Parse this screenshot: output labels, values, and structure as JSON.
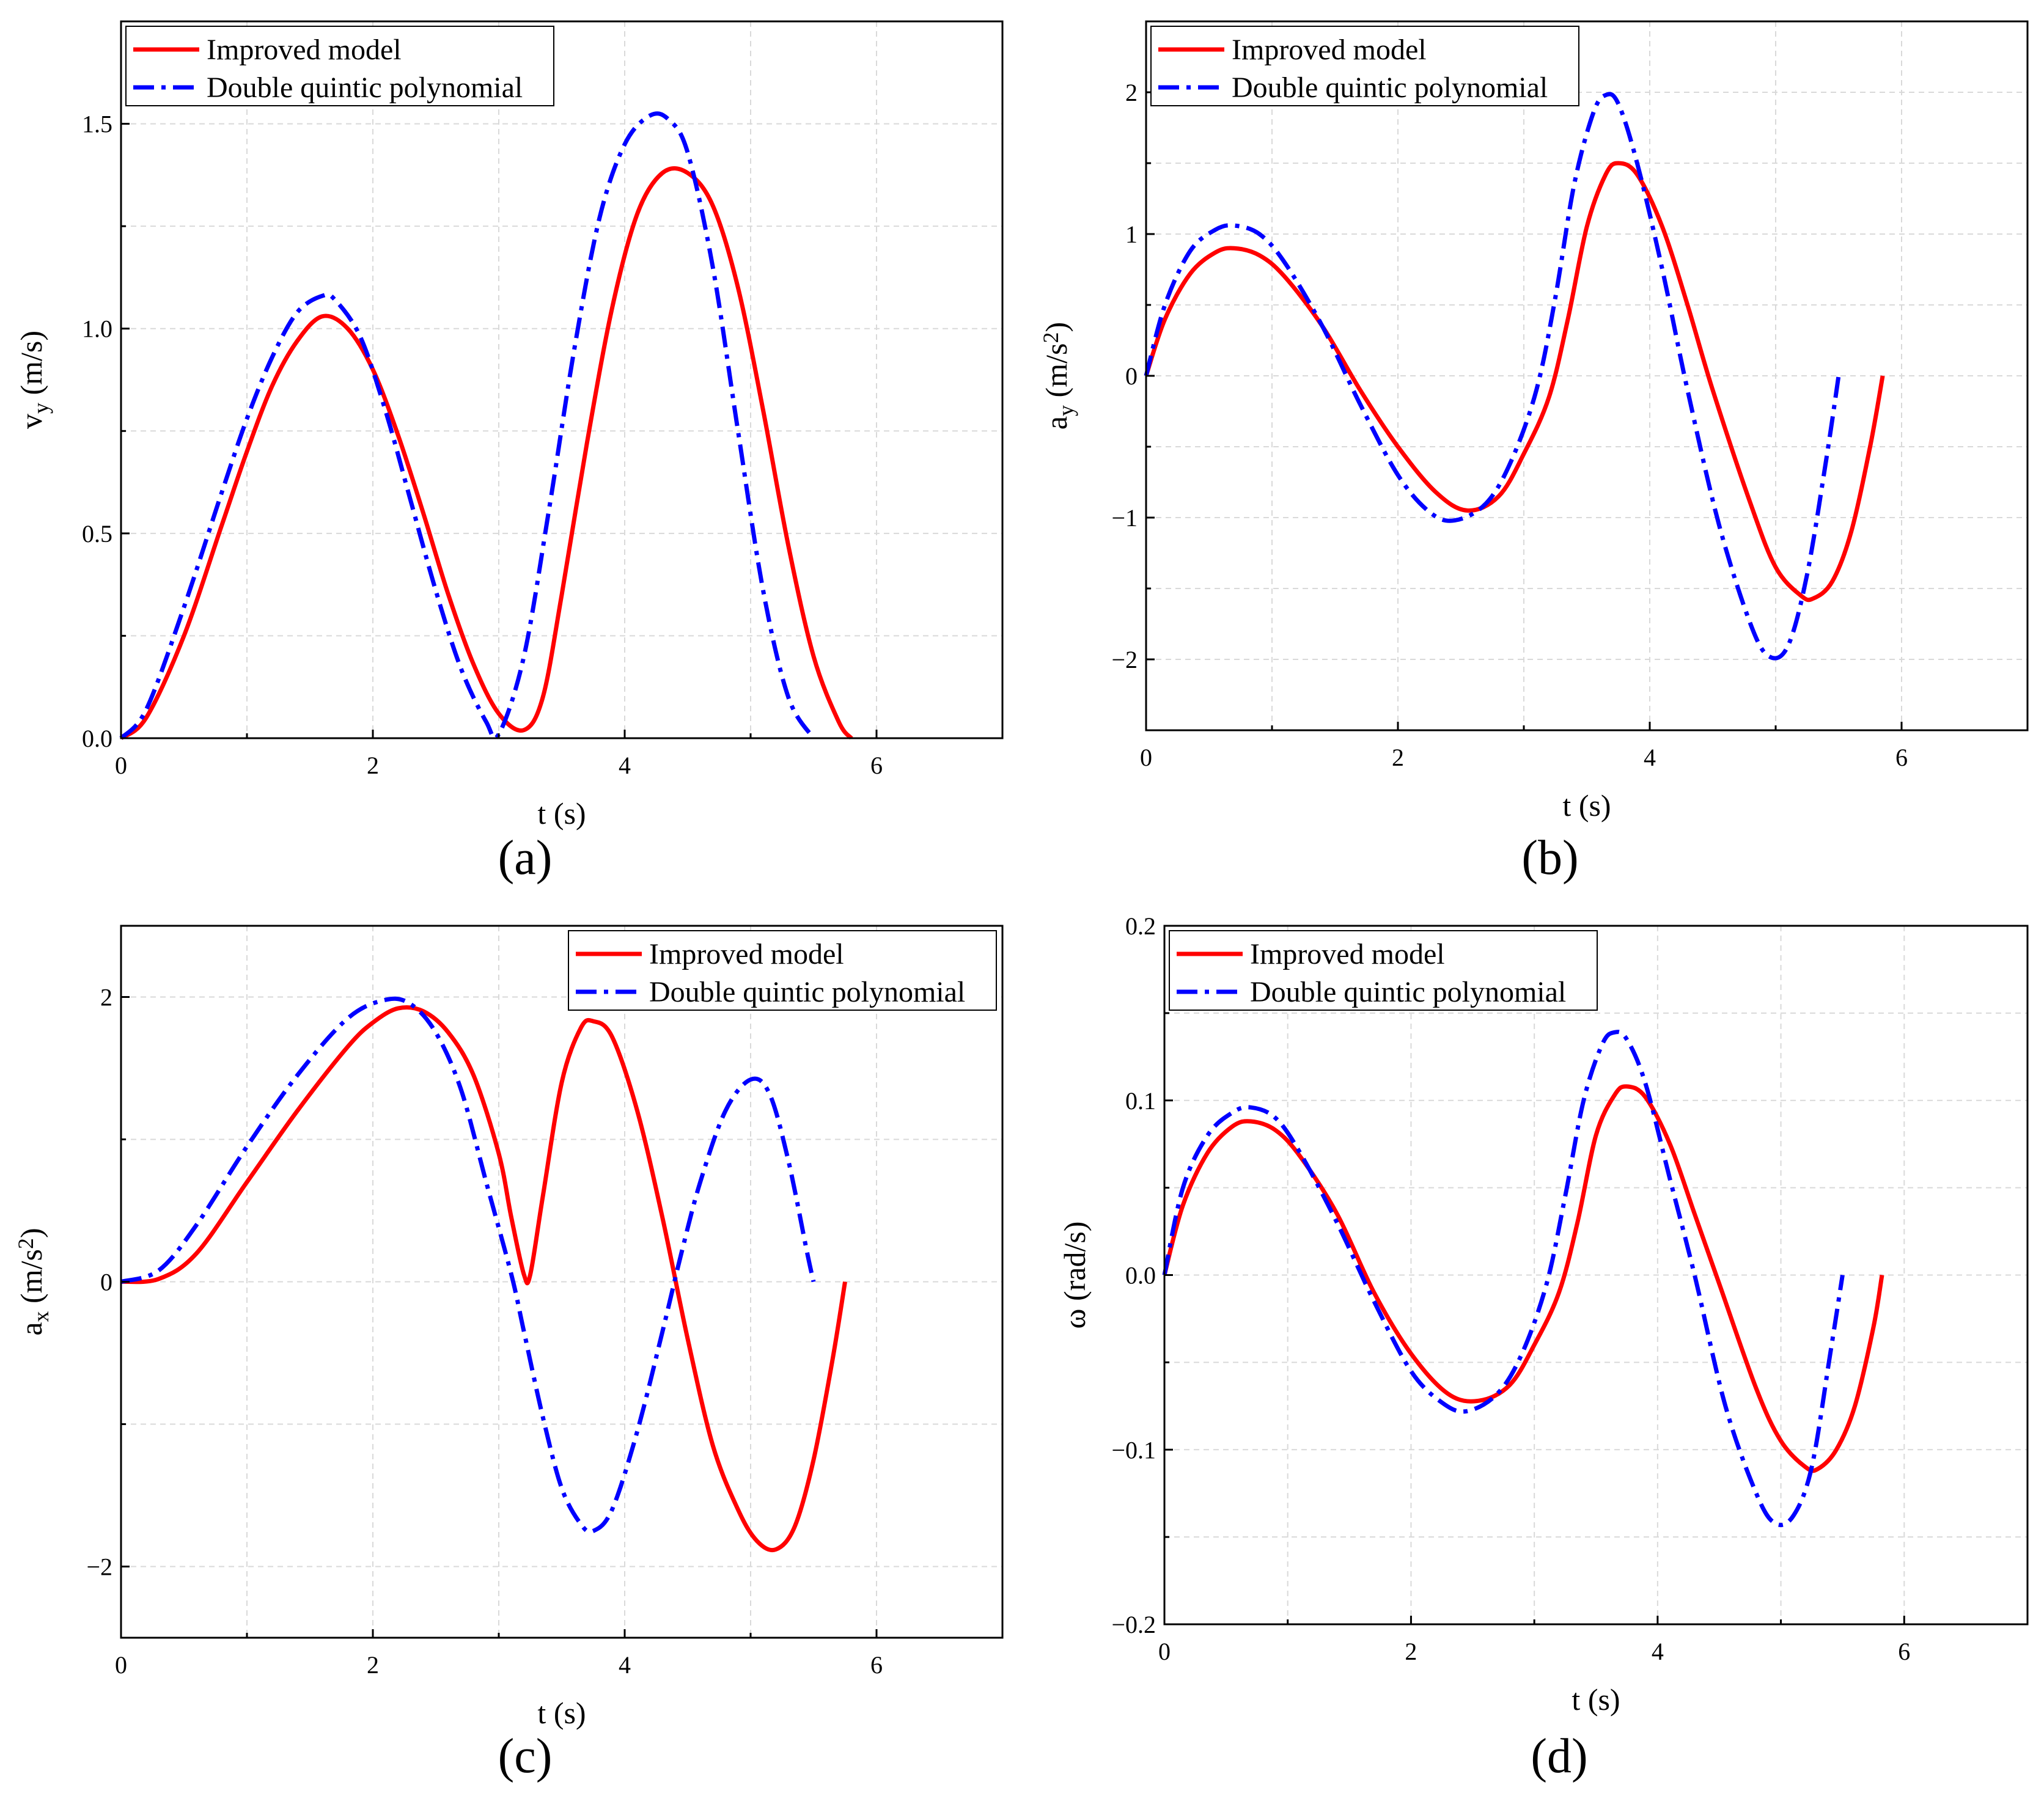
{
  "figure": {
    "legend_labels": [
      "Improved model",
      "Double quintic polynomial"
    ],
    "series_colors": {
      "improved": "#ff0000",
      "polynomial": "#0000ff"
    }
  },
  "chart_data": [
    {
      "type": "line",
      "sublabel": "(a)",
      "xlabel": "t (s)",
      "ylabel_main": "v",
      "ylabel_sub": "y",
      "ylabel_rest": " (m/s)",
      "ylabel_sup": "",
      "ylabel_tail": "",
      "xlim": [
        0,
        7
      ],
      "ylim": [
        0,
        1.75
      ],
      "xticks": [
        0,
        2,
        4,
        6
      ],
      "xtick_labels": [
        "0",
        "2",
        "4",
        "6"
      ],
      "yticks": [
        0,
        0.5,
        1.0,
        1.5
      ],
      "ytick_labels": [
        "0.0",
        "0.5",
        "1.0",
        "1.5"
      ],
      "legend": "top-left",
      "series": [
        {
          "name": "Improved model",
          "style": "solid",
          "x": [
            0,
            0.2,
            0.5,
            0.8,
            1.0,
            1.2,
            1.4,
            1.6,
            1.8,
            2.0,
            2.2,
            2.4,
            2.6,
            2.8,
            3.0,
            3.2,
            3.35,
            3.5,
            3.7,
            3.9,
            4.1,
            4.3,
            4.5,
            4.7,
            4.9,
            5.1,
            5.3,
            5.5,
            5.7,
            5.8
          ],
          "y": [
            0,
            0.05,
            0.25,
            0.52,
            0.7,
            0.86,
            0.97,
            1.03,
            1.0,
            0.9,
            0.74,
            0.55,
            0.35,
            0.18,
            0.06,
            0.02,
            0.1,
            0.35,
            0.72,
            1.05,
            1.28,
            1.38,
            1.38,
            1.3,
            1.1,
            0.8,
            0.47,
            0.2,
            0.04,
            0
          ]
        },
        {
          "name": "Double quintic polynomial",
          "style": "dashdot",
          "x": [
            0,
            0.2,
            0.5,
            0.8,
            1.0,
            1.2,
            1.4,
            1.6,
            1.7,
            1.9,
            2.1,
            2.3,
            2.5,
            2.7,
            2.9,
            3.0,
            3.2,
            3.4,
            3.6,
            3.8,
            4.0,
            4.2,
            4.35,
            4.5,
            4.7,
            4.9,
            5.1,
            5.3,
            5.5
          ],
          "y": [
            0,
            0.07,
            0.32,
            0.6,
            0.78,
            0.93,
            1.04,
            1.08,
            1.07,
            0.98,
            0.8,
            0.58,
            0.36,
            0.17,
            0.04,
            0.01,
            0.2,
            0.56,
            0.95,
            1.27,
            1.45,
            1.52,
            1.51,
            1.43,
            1.15,
            0.75,
            0.36,
            0.1,
            0
          ]
        }
      ]
    },
    {
      "type": "line",
      "sublabel": "(b)",
      "xlabel": "t (s)",
      "ylabel_main": "a",
      "ylabel_sub": "y",
      "ylabel_rest": " (m/s",
      "ylabel_sup": "2",
      "ylabel_tail": ")",
      "xlim": [
        0,
        7
      ],
      "ylim": [
        -2.5,
        2.5
      ],
      "xticks": [
        0,
        2,
        4,
        6
      ],
      "xtick_labels": [
        "0",
        "2",
        "4",
        "6"
      ],
      "yticks": [
        -2,
        -1,
        0,
        1,
        2
      ],
      "ytick_labels": [
        "−2",
        "−1",
        "0",
        "1",
        "2"
      ],
      "legend": "top-left",
      "series": [
        {
          "name": "Improved model",
          "style": "solid",
          "x": [
            0,
            0.15,
            0.35,
            0.55,
            0.7,
            0.9,
            1.1,
            1.4,
            1.7,
            2.0,
            2.3,
            2.55,
            2.8,
            3.0,
            3.2,
            3.35,
            3.5,
            3.65,
            3.75,
            3.9,
            4.1,
            4.3,
            4.5,
            4.8,
            5.0,
            5.2,
            5.3,
            5.45,
            5.6,
            5.75,
            5.85
          ],
          "y": [
            0,
            0.4,
            0.72,
            0.87,
            0.9,
            0.85,
            0.7,
            0.35,
            -0.1,
            -0.5,
            -0.82,
            -0.95,
            -0.85,
            -0.55,
            -0.15,
            0.4,
            1.05,
            1.42,
            1.5,
            1.42,
            1.05,
            0.5,
            -0.1,
            -0.9,
            -1.35,
            -1.55,
            -1.57,
            -1.45,
            -1.1,
            -0.5,
            0
          ]
        },
        {
          "name": "Double quintic polynomial",
          "style": "dashdot",
          "x": [
            0,
            0.15,
            0.35,
            0.55,
            0.7,
            0.9,
            1.1,
            1.4,
            1.7,
            2.0,
            2.25,
            2.45,
            2.7,
            2.9,
            3.1,
            3.25,
            3.4,
            3.55,
            3.65,
            3.75,
            3.9,
            4.1,
            4.3,
            4.55,
            4.8,
            4.95,
            5.1,
            5.25,
            5.4,
            5.5
          ],
          "y": [
            0,
            0.5,
            0.88,
            1.03,
            1.06,
            1.0,
            0.8,
            0.35,
            -0.2,
            -0.7,
            -0.96,
            -1.02,
            -0.9,
            -0.6,
            -0.1,
            0.55,
            1.35,
            1.85,
            1.98,
            1.92,
            1.5,
            0.75,
            -0.1,
            -1.05,
            -1.75,
            -1.98,
            -1.9,
            -1.4,
            -0.6,
            0
          ]
        }
      ]
    },
    {
      "type": "line",
      "sublabel": "(c)",
      "xlabel": "t (s)",
      "ylabel_main": "a",
      "ylabel_sub": "x",
      "ylabel_rest": " (m/s",
      "ylabel_sup": "2",
      "ylabel_tail": ")",
      "xlim": [
        0,
        7
      ],
      "ylim": [
        -2.5,
        2.5
      ],
      "xticks": [
        0,
        2,
        4,
        6
      ],
      "xtick_labels": [
        "0",
        "2",
        "4",
        "6"
      ],
      "yticks": [
        -2,
        0,
        2
      ],
      "ytick_labels": [
        "−2",
        "0",
        "2"
      ],
      "legend": "top-right",
      "series": [
        {
          "name": "Improved model",
          "style": "solid",
          "x": [
            0,
            0.3,
            0.6,
            1.0,
            1.4,
            1.8,
            2.0,
            2.2,
            2.4,
            2.6,
            2.8,
            3.0,
            3.1,
            3.2,
            3.25,
            3.35,
            3.5,
            3.65,
            3.75,
            3.9,
            4.1,
            4.3,
            4.5,
            4.7,
            4.9,
            5.05,
            5.2,
            5.35,
            5.5,
            5.65,
            5.75
          ],
          "y": [
            0,
            0.02,
            0.2,
            0.7,
            1.2,
            1.65,
            1.82,
            1.92,
            1.9,
            1.75,
            1.45,
            0.9,
            0.45,
            0.05,
            0.05,
            0.6,
            1.4,
            1.78,
            1.83,
            1.72,
            1.2,
            0.45,
            -0.4,
            -1.15,
            -1.6,
            -1.82,
            -1.88,
            -1.72,
            -1.25,
            -0.55,
            0
          ]
        },
        {
          "name": "Double quintic polynomial",
          "style": "dashdot",
          "x": [
            0,
            0.3,
            0.6,
            1.0,
            1.4,
            1.8,
            2.1,
            2.3,
            2.5,
            2.7,
            2.9,
            3.1,
            3.2,
            3.35,
            3.5,
            3.65,
            3.75,
            3.9,
            4.1,
            4.3,
            4.45,
            4.6,
            4.8,
            5.0,
            5.15,
            5.3,
            5.45,
            5.5
          ],
          "y": [
            0,
            0.08,
            0.4,
            0.95,
            1.45,
            1.85,
            1.98,
            1.95,
            1.75,
            1.35,
            0.7,
            0.05,
            -0.35,
            -0.95,
            -1.45,
            -1.7,
            -1.75,
            -1.6,
            -1.05,
            -0.35,
            0.2,
            0.7,
            1.2,
            1.42,
            1.32,
            0.85,
            0.2,
            0
          ]
        }
      ]
    },
    {
      "type": "line",
      "sublabel": "(d)",
      "xlabel": "t (s)",
      "ylabel_main": "ω",
      "ylabel_sub": "",
      "ylabel_rest": "  (rad/s)",
      "ylabel_sup": "",
      "ylabel_tail": "",
      "xlim": [
        0,
        7
      ],
      "ylim": [
        -0.2,
        0.2
      ],
      "xticks": [
        0,
        2,
        4,
        6
      ],
      "xtick_labels": [
        "0",
        "2",
        "4",
        "6"
      ],
      "yticks": [
        -0.2,
        -0.1,
        0.0,
        0.1,
        0.2
      ],
      "ytick_labels": [
        "−0.2",
        "−0.1",
        "0.0",
        "0.1",
        "0.2"
      ],
      "legend": "top-left",
      "series": [
        {
          "name": "Improved model",
          "style": "solid",
          "x": [
            0,
            0.15,
            0.35,
            0.55,
            0.7,
            0.9,
            1.1,
            1.4,
            1.7,
            2.0,
            2.3,
            2.55,
            2.8,
            3.0,
            3.2,
            3.35,
            3.5,
            3.65,
            3.75,
            3.9,
            4.1,
            4.3,
            4.5,
            4.8,
            5.0,
            5.2,
            5.3,
            5.45,
            5.6,
            5.75,
            5.82
          ],
          "y": [
            0,
            0.04,
            0.07,
            0.085,
            0.088,
            0.083,
            0.068,
            0.035,
            -0.01,
            -0.045,
            -0.068,
            -0.072,
            -0.063,
            -0.04,
            -0.01,
            0.03,
            0.08,
            0.103,
            0.108,
            0.102,
            0.075,
            0.035,
            -0.005,
            -0.065,
            -0.095,
            -0.11,
            -0.111,
            -0.1,
            -0.075,
            -0.03,
            0
          ]
        },
        {
          "name": "Double quintic polynomial",
          "style": "dashdot",
          "x": [
            0,
            0.15,
            0.35,
            0.55,
            0.7,
            0.9,
            1.1,
            1.4,
            1.7,
            2.0,
            2.25,
            2.45,
            2.7,
            2.9,
            3.1,
            3.25,
            3.4,
            3.55,
            3.65,
            3.75,
            3.9,
            4.1,
            4.3,
            4.55,
            4.8,
            4.95,
            5.1,
            5.25,
            5.4,
            5.5
          ],
          "y": [
            0,
            0.05,
            0.08,
            0.093,
            0.096,
            0.09,
            0.07,
            0.03,
            -0.015,
            -0.055,
            -0.073,
            -0.078,
            -0.068,
            -0.045,
            -0.005,
            0.045,
            0.1,
            0.132,
            0.139,
            0.135,
            0.11,
            0.055,
            0.0,
            -0.075,
            -0.125,
            -0.142,
            -0.138,
            -0.11,
            -0.045,
            0
          ]
        }
      ]
    }
  ]
}
